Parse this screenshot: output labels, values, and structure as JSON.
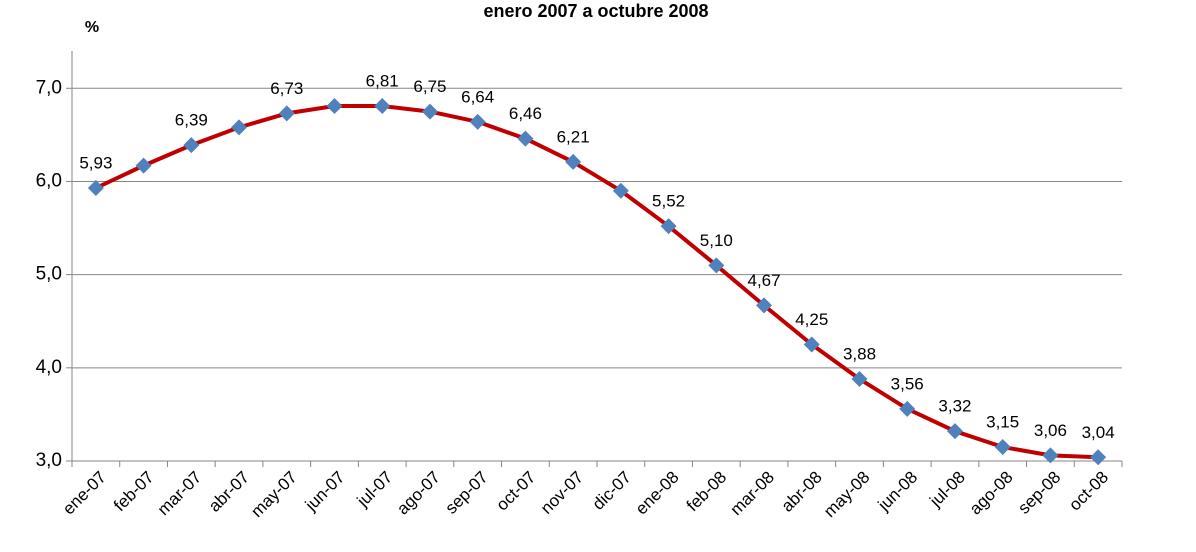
{
  "chart_data": {
    "type": "line",
    "title": "enero 2007 a octubre 2008",
    "y_label": "%",
    "categories": [
      "ene-07",
      "feb-07",
      "mar-07",
      "abr-07",
      "may-07",
      "jun-07",
      "jul-07",
      "ago-07",
      "sep-07",
      "oct-07",
      "nov-07",
      "dic-07",
      "ene-08",
      "feb-08",
      "mar-08",
      "abr-08",
      "may-08",
      "jun-08",
      "jul-08",
      "ago-08",
      "sep-08",
      "oct-08"
    ],
    "series": [
      {
        "color": "#c00000",
        "marker_color": "#4f81bd",
        "values": [
          5.93,
          6.17,
          6.39,
          6.58,
          6.73,
          6.81,
          6.81,
          6.75,
          6.64,
          6.46,
          6.21,
          5.9,
          5.52,
          5.1,
          4.67,
          4.25,
          3.88,
          3.56,
          3.32,
          3.15,
          3.06,
          3.04
        ],
        "value_labels": [
          "5,93",
          null,
          "6,39",
          null,
          "6,73",
          null,
          "6,81",
          "6,75",
          "6,64",
          "6,46",
          "6,21",
          null,
          "5,52",
          "5,10",
          "4,67",
          "4,25",
          "3,88",
          "3,56",
          "3,32",
          "3,15",
          "3,06",
          "3,04"
        ]
      }
    ],
    "ylim": [
      3,
      7.4
    ],
    "yticks": [
      {
        "value": 3,
        "label": "3,0"
      },
      {
        "value": 4,
        "label": "4,0"
      },
      {
        "value": 5,
        "label": "5,0"
      },
      {
        "value": 6,
        "label": "6,0"
      },
      {
        "value": 7,
        "label": "7,0"
      }
    ],
    "grid": true
  }
}
